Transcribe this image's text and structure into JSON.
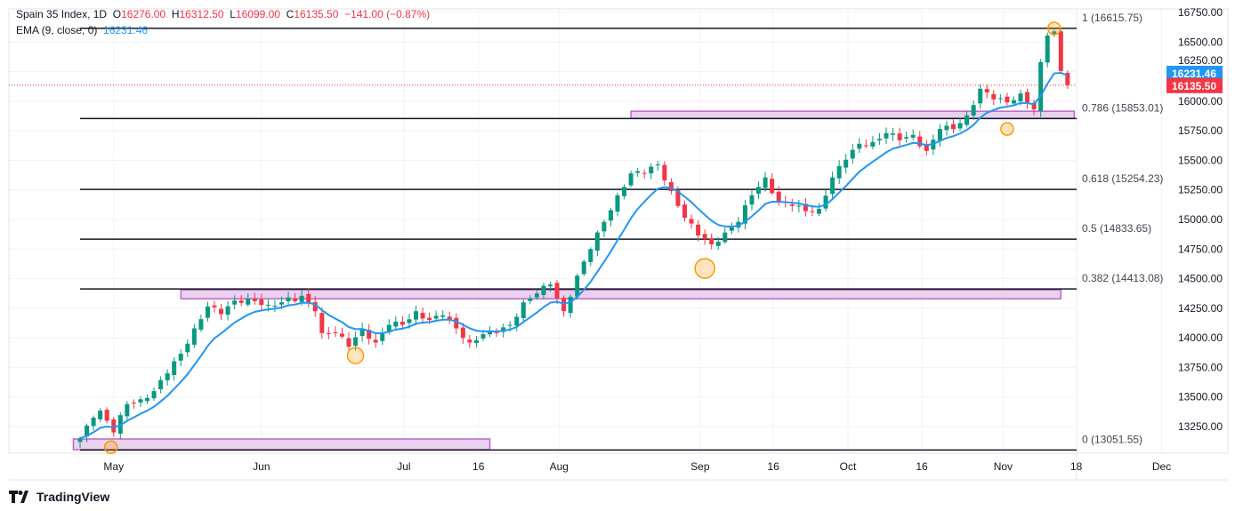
{
  "header": {
    "symbol": "Spain 35 Index, 1D",
    "o_label": "O",
    "o": "16276.00",
    "h_label": "H",
    "h": "16312.50",
    "l_label": "L",
    "l": "16099.00",
    "c_label": "C",
    "c": "16135.50",
    "change": "−141.00 (−0.87%)",
    "ema_label": "EMA (9, close, 0)",
    "ema_value": "16231.46"
  },
  "brand": "TradingView",
  "chart_data": {
    "type": "candlestick",
    "title": "Spain 35 Index, 1D",
    "ylim": [
      13150,
      16750
    ],
    "y_ticks": [
      13250,
      13500,
      13750,
      14000,
      14250,
      14500,
      14750,
      15000,
      15250,
      15500,
      15750,
      16000,
      16250,
      16500,
      16750
    ],
    "y_tick_labels": [
      "13250.00",
      "13500.00",
      "13750.00",
      "14000.00",
      "14250.00",
      "14500.00",
      "14750.00",
      "15000.00",
      "15250.00",
      "15500.00",
      "15750.00",
      "16000.00",
      "16250.00",
      "16500.00",
      "16750.00"
    ],
    "x_labels": [
      {
        "bar": 5,
        "label": "May"
      },
      {
        "bar": 27,
        "label": "Jun"
      },
      {
        "bar": 48.2,
        "label": "Jul"
      },
      {
        "bar": 59.3,
        "label": "16"
      },
      {
        "bar": 71.3,
        "label": "Aug"
      },
      {
        "bar": 92.3,
        "label": "Sep"
      },
      {
        "bar": 103.2,
        "label": "16"
      },
      {
        "bar": 114.3,
        "label": "Oct"
      },
      {
        "bar": 125.3,
        "label": "16"
      },
      {
        "bar": 137.4,
        "label": "Nov"
      },
      {
        "bar": 148.3,
        "label": "18"
      },
      {
        "bar": 161,
        "label": "Dec"
      }
    ],
    "close_keypoints": [
      [
        0,
        13150
      ],
      [
        2,
        13325
      ],
      [
        3,
        13385
      ],
      [
        5,
        13200
      ],
      [
        7,
        13440
      ],
      [
        9,
        13480
      ],
      [
        11,
        13550
      ],
      [
        13,
        13700
      ],
      [
        15,
        13865
      ],
      [
        17,
        14080
      ],
      [
        19,
        14265
      ],
      [
        21,
        14200
      ],
      [
        23,
        14315
      ],
      [
        25,
        14330
      ],
      [
        28,
        14280
      ],
      [
        30,
        14300
      ],
      [
        33,
        14355
      ],
      [
        35,
        14225
      ],
      [
        36,
        14040
      ],
      [
        38,
        14040
      ],
      [
        40,
        13925
      ],
      [
        42,
        14080
      ],
      [
        44,
        13960
      ],
      [
        46,
        14110
      ],
      [
        48,
        14110
      ],
      [
        50,
        14225
      ],
      [
        52,
        14150
      ],
      [
        54,
        14190
      ],
      [
        56,
        14080
      ],
      [
        58,
        13960
      ],
      [
        60,
        14030
      ],
      [
        62,
        14045
      ],
      [
        64,
        14110
      ],
      [
        66,
        14300
      ],
      [
        68,
        14375
      ],
      [
        70,
        14450
      ],
      [
        72,
        14225
      ],
      [
        74,
        14525
      ],
      [
        76,
        14750
      ],
      [
        78,
        14980
      ],
      [
        80,
        15205
      ],
      [
        82,
        15390
      ],
      [
        84,
        15390
      ],
      [
        86,
        15465
      ],
      [
        88,
        15240
      ],
      [
        90,
        15015
      ],
      [
        92,
        14865
      ],
      [
        94,
        14790
      ],
      [
        96,
        14890
      ],
      [
        98,
        14980
      ],
      [
        100,
        15205
      ],
      [
        102,
        15355
      ],
      [
        104,
        15145
      ],
      [
        106,
        15115
      ],
      [
        108,
        15070
      ],
      [
        110,
        15090
      ],
      [
        112,
        15355
      ],
      [
        114,
        15505
      ],
      [
        116,
        15640
      ],
      [
        118,
        15655
      ],
      [
        120,
        15730
      ],
      [
        122,
        15670
      ],
      [
        124,
        15715
      ],
      [
        126,
        15580
      ],
      [
        128,
        15765
      ],
      [
        130,
        15765
      ],
      [
        132,
        15880
      ],
      [
        134,
        16105
      ],
      [
        136,
        16015
      ],
      [
        138,
        15990
      ],
      [
        140,
        16065
      ],
      [
        142,
        15930
      ],
      [
        143,
        16330
      ],
      [
        144,
        16555
      ],
      [
        145,
        16590
      ],
      [
        146,
        16255
      ],
      [
        147,
        16135.5
      ]
    ],
    "last_close": {
      "value": 16135.5,
      "label": "16135.50"
    },
    "ema": {
      "period": 9,
      "last": 16231.46,
      "label": "16231.46"
    },
    "fib_levels": [
      {
        "ratio": "1",
        "price": 16615.75,
        "label": "1 (16615.75)"
      },
      {
        "ratio": "0.786",
        "price": 15853.01,
        "label": "0.786 (15853.01)"
      },
      {
        "ratio": "0.618",
        "price": 15254.23,
        "label": "0.618 (15254.23)"
      },
      {
        "ratio": "0.5",
        "price": 14833.65,
        "label": "0.5 (14833.65)"
      },
      {
        "ratio": "0.382",
        "price": 14413.08,
        "label": "0.382 (14413.08)"
      },
      {
        "ratio": "0",
        "price": 13051.55,
        "label": "0 (13051.55)"
      }
    ],
    "zones": [
      {
        "from_bar": 82,
        "to_bar": 148,
        "low": 15855,
        "high": 15915
      },
      {
        "from_bar": 15,
        "to_bar": 146,
        "low": 14330,
        "high": 14405
      },
      {
        "from_bar": -1,
        "to_bar": 61,
        "low": 13055,
        "high": 13145
      }
    ],
    "markers": [
      {
        "bar": 4.6,
        "price": 13075,
        "size": "small"
      },
      {
        "bar": 41,
        "price": 13850,
        "size": "medium"
      },
      {
        "bar": 93,
        "price": 14587,
        "size": "large"
      },
      {
        "bar": 138,
        "price": 15765,
        "size": "small"
      },
      {
        "bar": 145,
        "price": 16615,
        "size": "small"
      }
    ],
    "colors": {
      "up": "#089981",
      "down": "#f23645",
      "ema": "#2196f3",
      "zone_fill": "#e1bee7",
      "zone_stroke": "#ba68c8",
      "marker": "#ff9800",
      "fib": "#131722"
    }
  }
}
